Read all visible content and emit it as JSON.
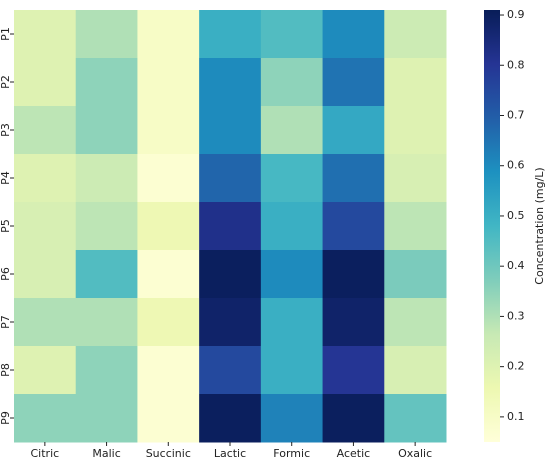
{
  "chart_data": {
    "type": "heatmap",
    "x_categories": [
      "Citric",
      "Malic",
      "Succinic",
      "Lactic",
      "Formic",
      "Acetic",
      "Oxalic"
    ],
    "y_categories": [
      "P1",
      "P2",
      "P3",
      "P4",
      "P5",
      "P6",
      "P7",
      "P8",
      "P9"
    ],
    "values": [
      [
        0.2,
        0.3,
        0.1,
        0.5,
        0.45,
        0.6,
        0.25
      ],
      [
        0.2,
        0.35,
        0.1,
        0.6,
        0.35,
        0.65,
        0.2
      ],
      [
        0.28,
        0.35,
        0.1,
        0.6,
        0.3,
        0.52,
        0.2
      ],
      [
        0.2,
        0.25,
        0.07,
        0.68,
        0.47,
        0.66,
        0.22
      ],
      [
        0.22,
        0.28,
        0.15,
        0.82,
        0.5,
        0.75,
        0.28
      ],
      [
        0.22,
        0.45,
        0.07,
        0.9,
        0.6,
        0.9,
        0.38
      ],
      [
        0.3,
        0.3,
        0.15,
        0.88,
        0.5,
        0.88,
        0.28
      ],
      [
        0.2,
        0.35,
        0.07,
        0.75,
        0.5,
        0.8,
        0.22
      ],
      [
        0.35,
        0.35,
        0.07,
        0.9,
        0.62,
        0.9,
        0.42
      ]
    ],
    "colormap": "YlGnBu",
    "colorbar_label": "Concentration (mg/L)",
    "clim": [
      0.05,
      0.91
    ],
    "cticks": [
      0.1,
      0.2,
      0.3,
      0.4,
      0.5,
      0.6,
      0.7,
      0.8,
      0.9
    ]
  }
}
